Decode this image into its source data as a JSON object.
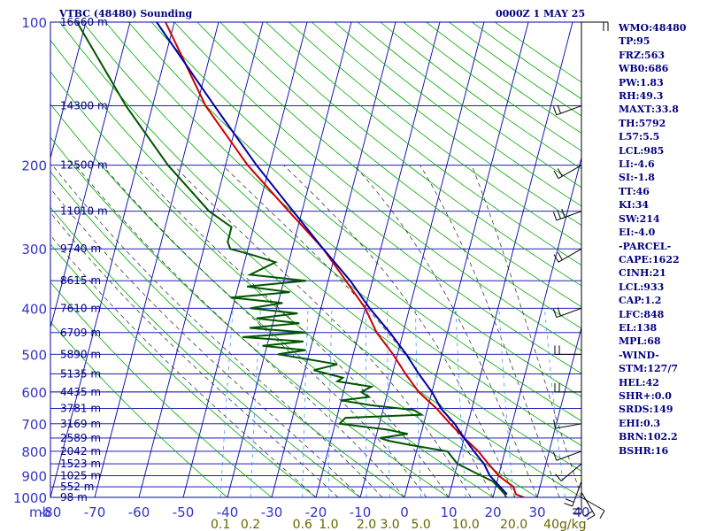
{
  "header": {
    "station": "VTBC (48480) Sounding",
    "time": "0000Z  1 MAY 25"
  },
  "indices": [
    "WMO:48480",
    "TP:95",
    "FRZ:563",
    "WB0:686",
    "PW:1.83",
    "RH:49.3",
    "MAXT:33.8",
    "TH:5792",
    "L57:5.5",
    "LCL:985",
    "LI:-4.6",
    "SI:-1.8",
    "TT:46",
    "KI:34",
    "SW:214",
    "EI:-4.0",
    "-PARCEL-",
    "CAPE:1622",
    "CINH:21",
    "LCL:933",
    "CAP:1.2",
    "LFC:848",
    "EL:138",
    "MPL:68",
    "-WIND-",
    "STM:127/7",
    "HEL:42",
    "SHR+:0.0",
    "SRDS:149",
    "EHI:0.3",
    "BRN:102.2",
    "BSHR:16"
  ],
  "chart_data": {
    "type": "line",
    "title": "VTBC (48480) Sounding",
    "subtitle": "0000Z  1 MAY 25",
    "ylabel": "mb",
    "xlabel": "",
    "y_scale": "log",
    "ylim": [
      1000,
      100
    ],
    "xlim": [
      -80,
      40
    ],
    "grid": true,
    "pressure_ticks": [
      "100",
      "200",
      "300",
      "400",
      "500",
      "600",
      "700",
      "800",
      "900",
      "1000"
    ],
    "temperature_ticks": [
      "-80",
      "-70",
      "-60",
      "-50",
      "-40",
      "-30",
      "-20",
      "-10",
      "0",
      "10",
      "20",
      "30",
      "40"
    ],
    "mixing_ratio_labels": [
      "0.1",
      "0.2",
      "0.6",
      "1.0",
      "2.0",
      "3.0",
      "5.0",
      "10.0",
      "20.0",
      "40g/kg"
    ],
    "height_labels": [
      {
        "p": 100,
        "label": "16660 m"
      },
      {
        "p": 150,
        "label": "14300 m"
      },
      {
        "p": 200,
        "label": "12500 m"
      },
      {
        "p": 250,
        "label": "11010 m"
      },
      {
        "p": 300,
        "label": "9740 m"
      },
      {
        "p": 350,
        "label": "8615 m"
      },
      {
        "p": 400,
        "label": "7610 m"
      },
      {
        "p": 450,
        "label": "6709 m"
      },
      {
        "p": 500,
        "label": "5890 m"
      },
      {
        "p": 550,
        "label": "5135 m"
      },
      {
        "p": 600,
        "label": "4435 m"
      },
      {
        "p": 650,
        "label": "3781 m"
      },
      {
        "p": 700,
        "label": "3169 m"
      },
      {
        "p": 750,
        "label": "2589 m"
      },
      {
        "p": 800,
        "label": "2042 m"
      },
      {
        "p": 850,
        "label": "1523 m"
      },
      {
        "p": 900,
        "label": "1025 m"
      },
      {
        "p": 950,
        "label": "552 m"
      },
      {
        "p": 1000,
        "label": "98 m"
      }
    ],
    "series": [
      {
        "name": "",
        "color": "#cc0000",
        "points": [
          [
            1000,
            27
          ],
          [
            985,
            25
          ],
          [
            950,
            24
          ],
          [
            925,
            22
          ],
          [
            900,
            20
          ],
          [
            850,
            17
          ],
          [
            800,
            14
          ],
          [
            750,
            10
          ],
          [
            700,
            6
          ],
          [
            650,
            2
          ],
          [
            600,
            -3
          ],
          [
            550,
            -7
          ],
          [
            500,
            -11
          ],
          [
            450,
            -16
          ],
          [
            400,
            -20
          ],
          [
            350,
            -26
          ],
          [
            300,
            -33
          ],
          [
            250,
            -43
          ],
          [
            200,
            -55
          ],
          [
            150,
            -68
          ],
          [
            100,
            -82
          ]
        ]
      },
      {
        "name": "",
        "color": "#005500",
        "points": [
          [
            1000,
            23
          ],
          [
            985,
            22.5
          ],
          [
            950,
            20.5
          ],
          [
            925,
            19
          ],
          [
            900,
            16
          ],
          [
            850,
            10
          ],
          [
            800,
            7
          ],
          [
            775,
            -2
          ],
          [
            760,
            -7
          ],
          [
            750,
            -9
          ],
          [
            735,
            -3
          ],
          [
            720,
            -8
          ],
          [
            700,
            -19
          ],
          [
            680,
            -18
          ],
          [
            670,
            -1
          ],
          [
            655,
            -3
          ],
          [
            640,
            -13
          ],
          [
            625,
            -20
          ],
          [
            615,
            -14
          ],
          [
            600,
            -16
          ],
          [
            585,
            -14
          ],
          [
            570,
            -22
          ],
          [
            560,
            -21
          ],
          [
            540,
            -28
          ],
          [
            525,
            -23
          ],
          [
            512,
            -30
          ],
          [
            500,
            -37
          ],
          [
            490,
            -31
          ],
          [
            480,
            -41
          ],
          [
            470,
            -32
          ],
          [
            460,
            -46
          ],
          [
            450,
            -32
          ],
          [
            440,
            -45
          ],
          [
            430,
            -34
          ],
          [
            420,
            -44
          ],
          [
            410,
            -35
          ],
          [
            400,
            -46
          ],
          [
            390,
            -39
          ],
          [
            380,
            -51
          ],
          [
            370,
            -38
          ],
          [
            360,
            -48
          ],
          [
            350,
            -35
          ],
          [
            340,
            -48
          ],
          [
            320,
            -43
          ],
          [
            310,
            -48
          ],
          [
            300,
            -54
          ],
          [
            290,
            -55
          ],
          [
            270,
            -55
          ],
          [
            250,
            -61
          ],
          [
            200,
            -73
          ],
          [
            150,
            -86
          ],
          [
            100,
            -102
          ]
        ]
      },
      {
        "name": "",
        "color": "#0000aa",
        "points": [
          [
            985,
            23
          ],
          [
            950,
            21
          ],
          [
            900,
            18
          ],
          [
            850,
            16
          ],
          [
            800,
            13
          ],
          [
            750,
            10
          ],
          [
            700,
            7
          ],
          [
            650,
            3
          ],
          [
            600,
            0
          ],
          [
            550,
            -4
          ],
          [
            500,
            -8
          ],
          [
            450,
            -13
          ],
          [
            400,
            -19
          ],
          [
            350,
            -25
          ],
          [
            300,
            -33
          ],
          [
            250,
            -42
          ],
          [
            200,
            -53
          ],
          [
            150,
            -66
          ],
          [
            100,
            -84
          ]
        ]
      }
    ],
    "wind_barbs": [
      {
        "p": 1000,
        "dir": 120,
        "spd": 10
      },
      {
        "p": 975,
        "dir": 150,
        "spd": 15
      },
      {
        "p": 950,
        "dir": 180,
        "spd": 20
      },
      {
        "p": 925,
        "dir": 200,
        "spd": 15
      },
      {
        "p": 850,
        "dir": 230,
        "spd": 10
      },
      {
        "p": 800,
        "dir": 250,
        "spd": 10
      },
      {
        "p": 700,
        "dir": 260,
        "spd": 10
      },
      {
        "p": 600,
        "dir": 270,
        "spd": 15
      },
      {
        "p": 500,
        "dir": 270,
        "spd": 15
      },
      {
        "p": 400,
        "dir": 250,
        "spd": 20
      },
      {
        "p": 300,
        "dir": 240,
        "spd": 20
      },
      {
        "p": 250,
        "dir": 250,
        "spd": 25
      },
      {
        "p": 200,
        "dir": 240,
        "spd": 20
      },
      {
        "p": 150,
        "dir": 250,
        "spd": 20
      },
      {
        "p": 100,
        "dir": 90,
        "spd": 15
      }
    ],
    "colors": {
      "isobar": "#0000aa",
      "isotherm": "#0000aa",
      "dry_adiabat": "#00aa00",
      "moist_adiabat": "#222222",
      "mixing_ratio": "#3399ff",
      "axis_label": "#3333cc",
      "mixing_label": "#666600"
    }
  }
}
